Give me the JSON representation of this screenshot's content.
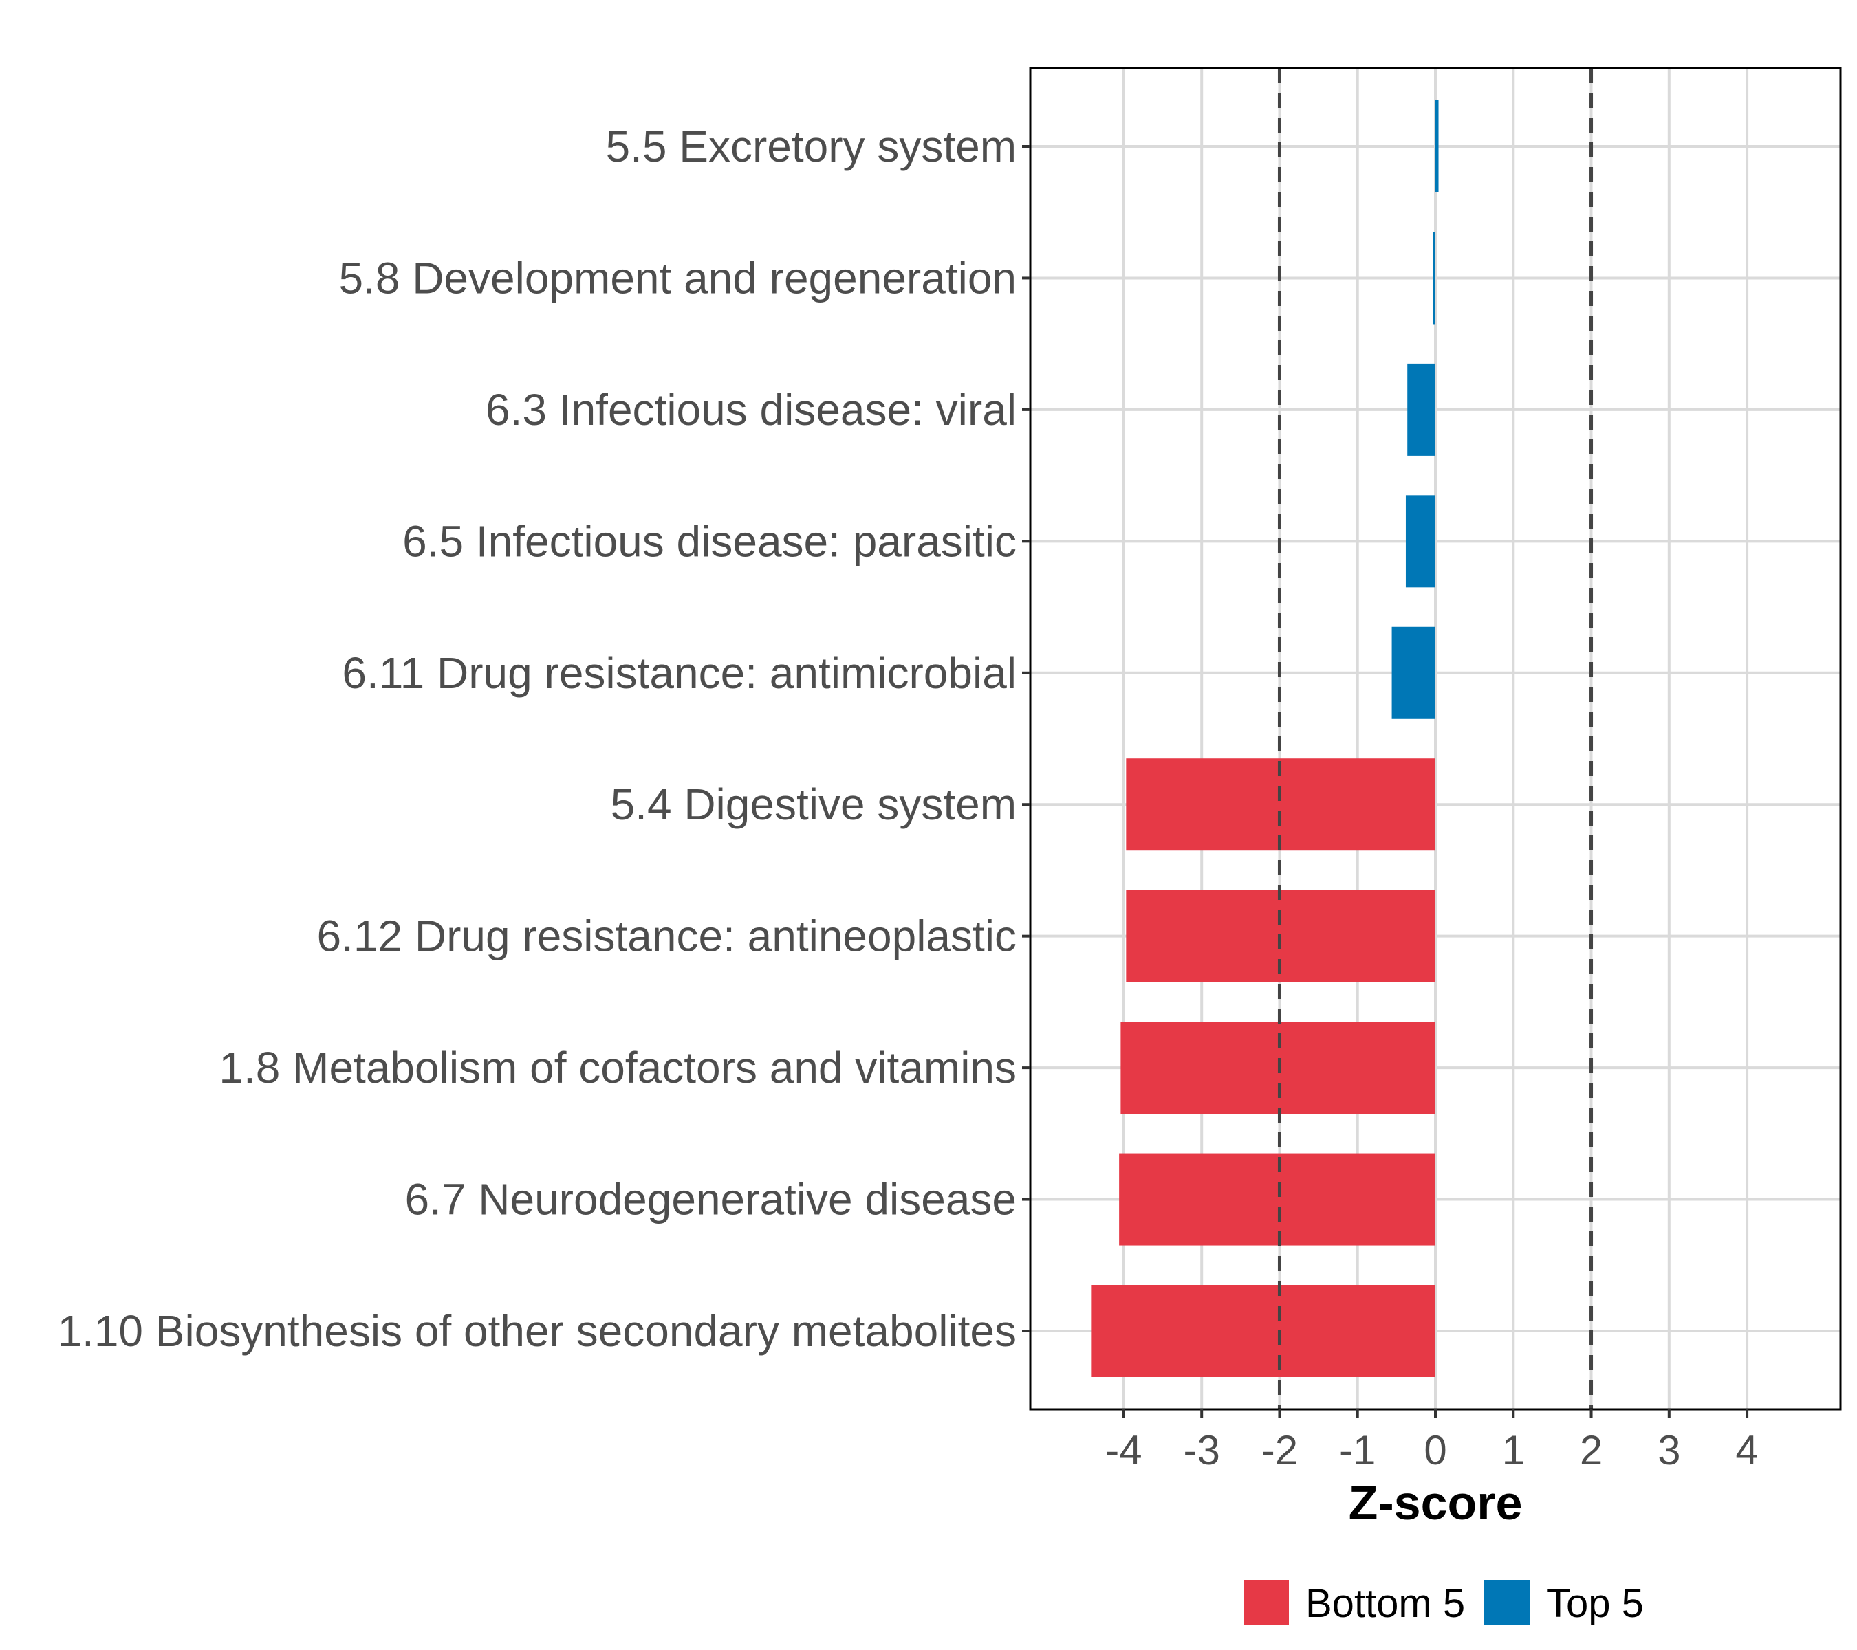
{
  "chart_data": {
    "type": "bar",
    "orientation": "horizontal",
    "title": "",
    "xlabel": "Z-score",
    "ylabel": "",
    "xlim": [
      -5.2,
      5.2
    ],
    "xticks": [
      -4,
      -3,
      -2,
      -1,
      0,
      1,
      2,
      3,
      4
    ],
    "xtick_labels": [
      "-4",
      "-3",
      "-2",
      "-1",
      "0",
      "1",
      "2",
      "3",
      "4"
    ],
    "grid": true,
    "reference_lines": [
      -2,
      2
    ],
    "reference_line_style": "dashed",
    "categories": [
      "5.5 Excretory system",
      "5.8 Development and regeneration",
      "6.3 Infectious disease: viral",
      "6.5 Infectious disease: parasitic",
      "6.11 Drug resistance: antimicrobial",
      "5.4 Digestive system",
      "6.12 Drug resistance: antineoplastic",
      "1.8 Metabolism of cofactors and vitamins",
      "6.7 Neurodegenerative disease",
      "1.10 Biosynthesis of other secondary metabolites"
    ],
    "values": [
      0.04,
      -0.03,
      -0.36,
      -0.38,
      -0.56,
      -3.97,
      -3.97,
      -4.04,
      -4.06,
      -4.42
    ],
    "groups": [
      "Top 5",
      "Top 5",
      "Top 5",
      "Top 5",
      "Top 5",
      "Bottom 5",
      "Bottom 5",
      "Bottom 5",
      "Bottom 5",
      "Bottom 5"
    ],
    "legend": {
      "placement": "bottom",
      "entries": [
        {
          "label": "Bottom 5",
          "color": "#E63946"
        },
        {
          "label": "Top 5",
          "color": "#0077B6"
        }
      ]
    },
    "colors": {
      "Bottom 5": "#E63946",
      "Top 5": "#0077B6"
    }
  }
}
